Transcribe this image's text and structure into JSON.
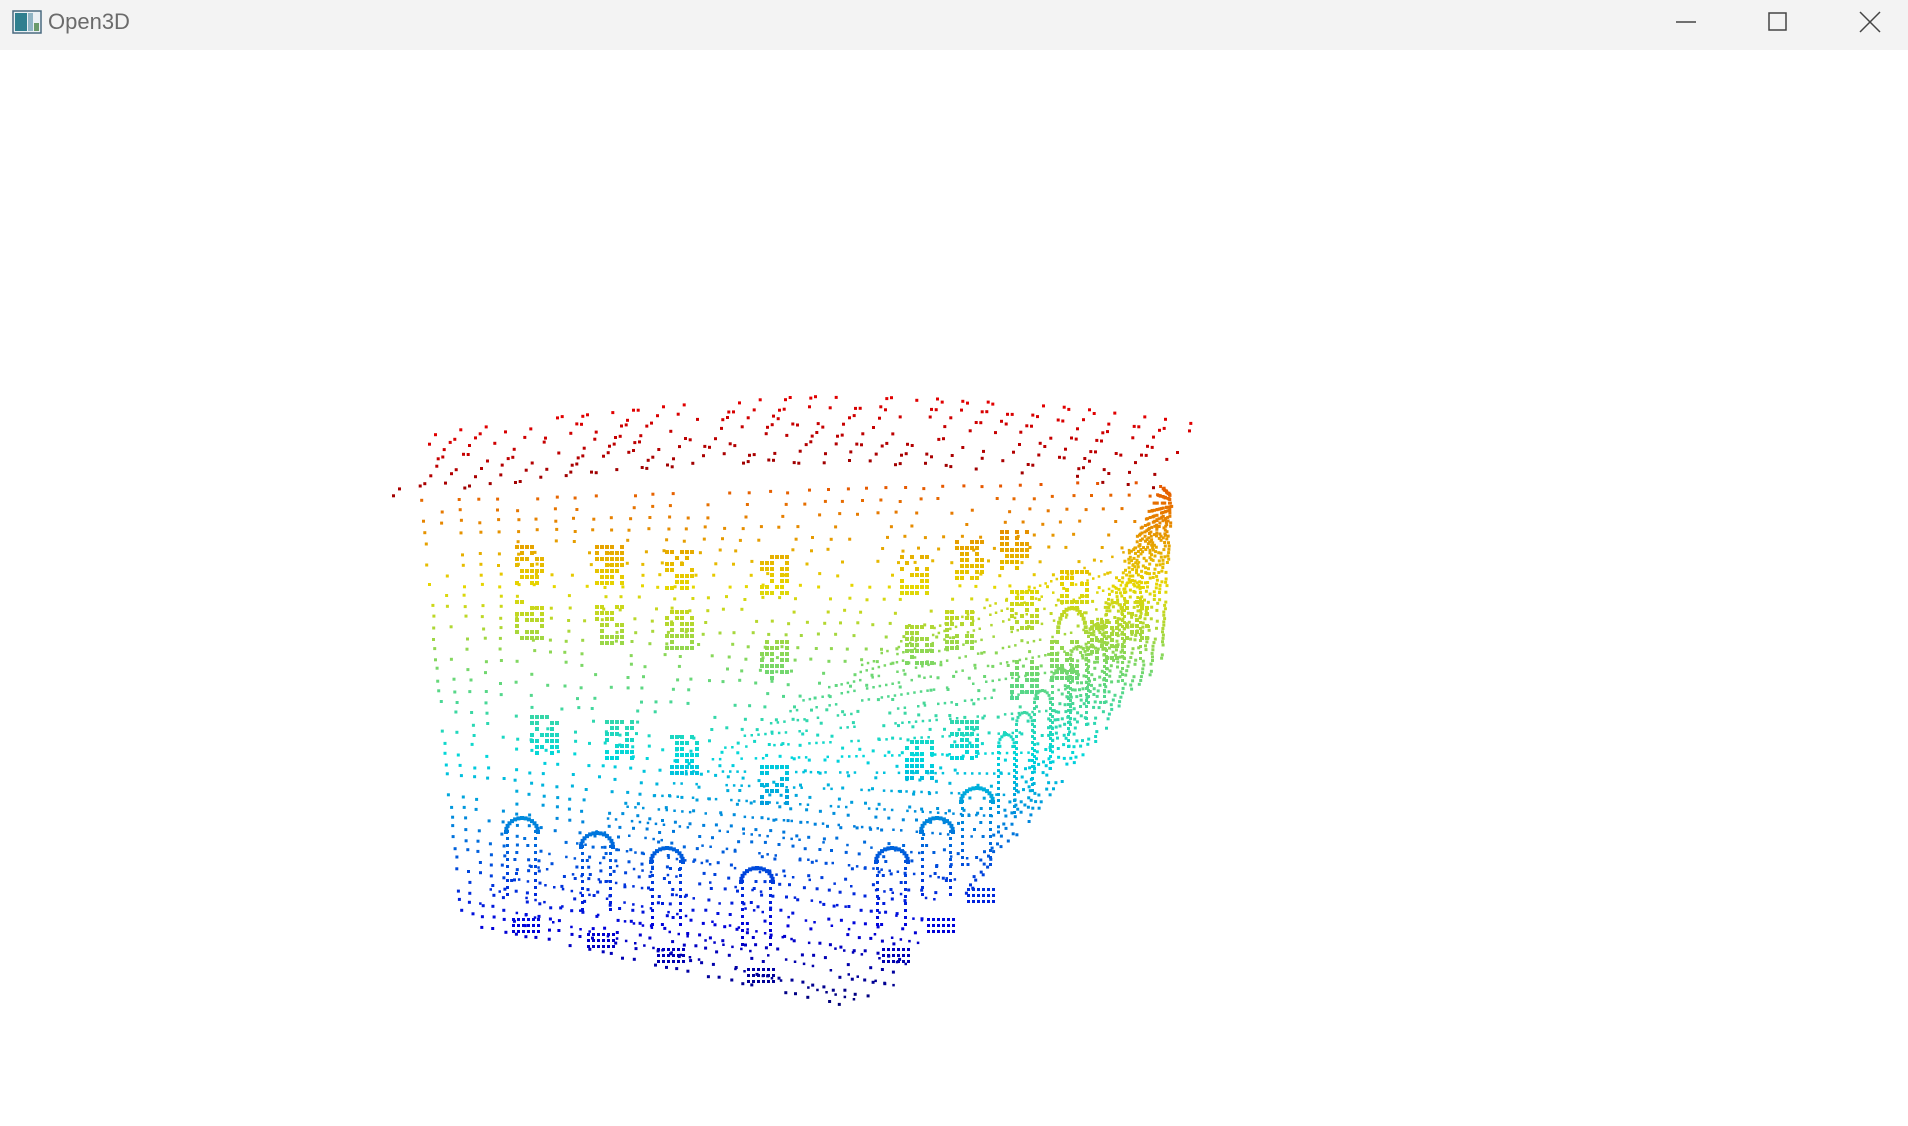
{
  "window": {
    "title": "Open3D",
    "controls": {
      "minimize": "minimize-icon",
      "maximize": "maximize-icon",
      "close": "close-icon"
    }
  },
  "viewport": {
    "background": "#ffffff",
    "colormap": "jet",
    "colors": {
      "top": "#c81e00",
      "upper": "#f08a00",
      "middle": "#d8e010",
      "lower_middle": "#20d8d0",
      "lower": "#0a52e0",
      "bottom": "#0a1ea0"
    }
  }
}
